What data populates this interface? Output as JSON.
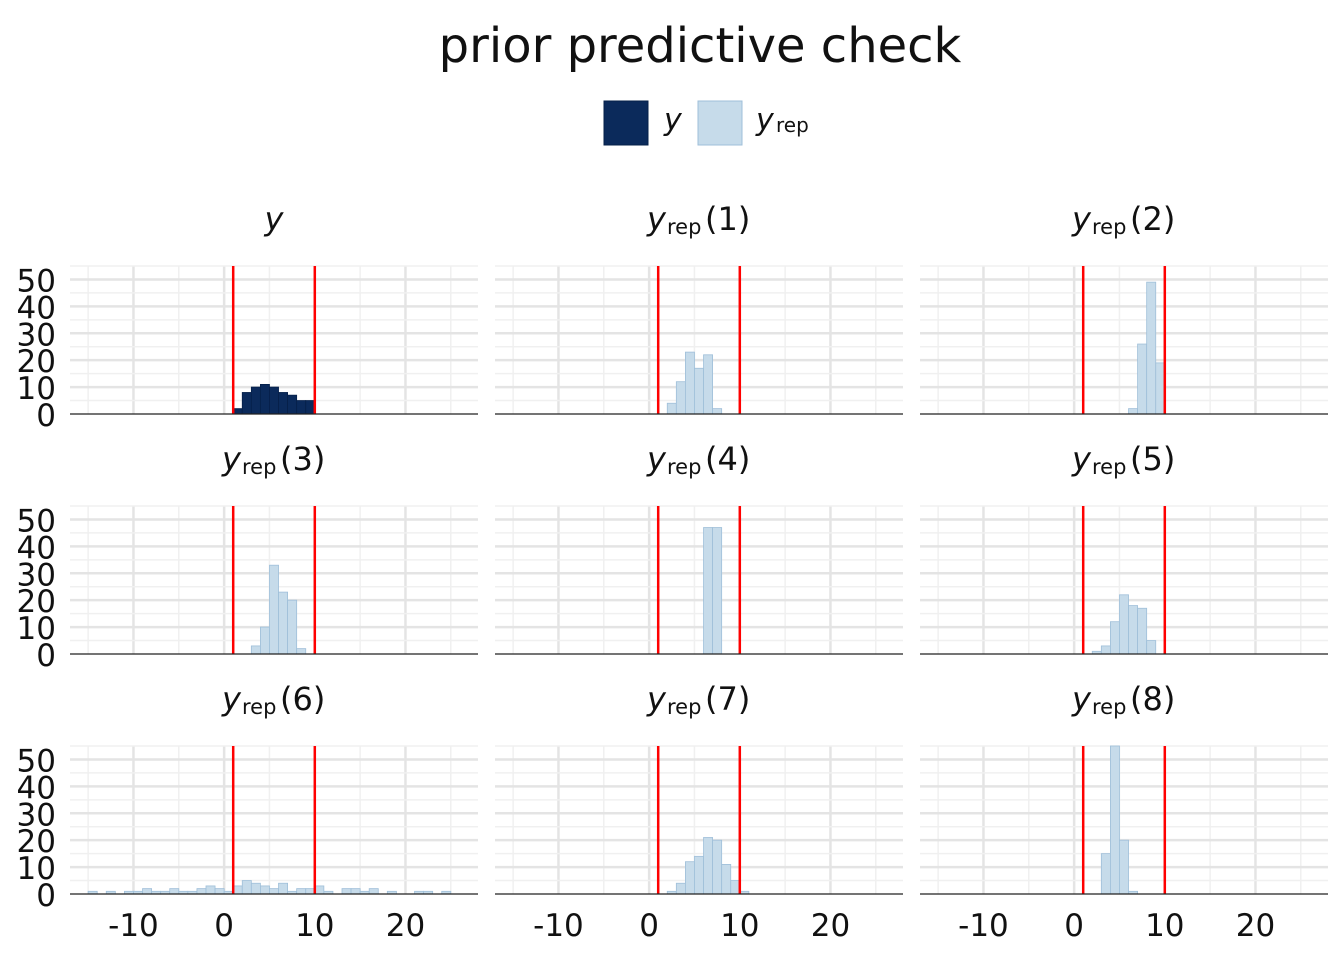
{
  "chart_data": {
    "type": "histogram-facets",
    "title": "prior predictive check",
    "legend": {
      "placement": "top-center",
      "items": [
        {
          "label_main": "y",
          "label_sub": "",
          "color": "#0b2a5b",
          "border": "#06204a"
        },
        {
          "label_main": "y",
          "label_sub": "rep",
          "color": "#c6dbea",
          "border": "#9fbfd9"
        }
      ]
    },
    "x_ticks": [
      -10,
      0,
      10,
      20
    ],
    "y_ticks": [
      0,
      10,
      20,
      30,
      40,
      50
    ],
    "xlim": [
      -17,
      28
    ],
    "ylim": [
      0,
      55
    ],
    "reference_lines": [
      1,
      10
    ],
    "reference_color": "#ff0000",
    "grid": true,
    "panels": [
      {
        "label_main": "y",
        "label_sub": "",
        "label_tail": "",
        "series": "y",
        "bins": [
          [
            1,
            2
          ],
          [
            2,
            8
          ],
          [
            3,
            10
          ],
          [
            4,
            11
          ],
          [
            5,
            10
          ],
          [
            6,
            8
          ],
          [
            7,
            7
          ],
          [
            8,
            5
          ],
          [
            9,
            5
          ]
        ]
      },
      {
        "label_main": "y",
        "label_sub": "rep",
        "label_tail": "(1)",
        "series": "rep",
        "bins": [
          [
            2,
            4
          ],
          [
            3,
            12
          ],
          [
            4,
            23
          ],
          [
            5,
            17
          ],
          [
            6,
            22
          ],
          [
            7,
            2
          ]
        ]
      },
      {
        "label_main": "y",
        "label_sub": "rep",
        "label_tail": "(2)",
        "series": "rep",
        "bins": [
          [
            6,
            2
          ],
          [
            7,
            26
          ],
          [
            8,
            49
          ],
          [
            9,
            19
          ]
        ]
      },
      {
        "label_main": "y",
        "label_sub": "rep",
        "label_tail": "(3)",
        "series": "rep",
        "bins": [
          [
            3,
            3
          ],
          [
            4,
            10
          ],
          [
            5,
            33
          ],
          [
            6,
            23
          ],
          [
            7,
            20
          ],
          [
            8,
            2
          ]
        ]
      },
      {
        "label_main": "y",
        "label_sub": "rep",
        "label_tail": "(4)",
        "series": "rep",
        "bins": [
          [
            6,
            47
          ],
          [
            7,
            47
          ]
        ]
      },
      {
        "label_main": "y",
        "label_sub": "rep",
        "label_tail": "(5)",
        "series": "rep",
        "bins": [
          [
            2,
            1
          ],
          [
            3,
            3
          ],
          [
            4,
            12
          ],
          [
            5,
            22
          ],
          [
            6,
            18
          ],
          [
            7,
            17
          ],
          [
            8,
            5
          ]
        ]
      },
      {
        "label_main": "y",
        "label_sub": "rep",
        "label_tail": "(6)",
        "series": "rep",
        "bins": [
          [
            -15,
            1
          ],
          [
            -13,
            1
          ],
          [
            -11,
            1
          ],
          [
            -10,
            1
          ],
          [
            -9,
            2
          ],
          [
            -8,
            1
          ],
          [
            -7,
            1
          ],
          [
            -6,
            2
          ],
          [
            -5,
            1
          ],
          [
            -4,
            1
          ],
          [
            -3,
            2
          ],
          [
            -2,
            3
          ],
          [
            -1,
            2
          ],
          [
            0,
            1
          ],
          [
            1,
            3
          ],
          [
            2,
            5
          ],
          [
            3,
            4
          ],
          [
            4,
            3
          ],
          [
            5,
            2
          ],
          [
            6,
            4
          ],
          [
            7,
            1
          ],
          [
            8,
            2
          ],
          [
            9,
            2
          ],
          [
            10,
            3
          ],
          [
            11,
            1
          ],
          [
            13,
            2
          ],
          [
            14,
            2
          ],
          [
            15,
            1
          ],
          [
            16,
            2
          ],
          [
            18,
            1
          ],
          [
            21,
            1
          ],
          [
            22,
            1
          ],
          [
            24,
            1
          ]
        ]
      },
      {
        "label_main": "y",
        "label_sub": "rep",
        "label_tail": "(7)",
        "series": "rep",
        "bins": [
          [
            2,
            1
          ],
          [
            3,
            4
          ],
          [
            4,
            12
          ],
          [
            5,
            14
          ],
          [
            6,
            21
          ],
          [
            7,
            20
          ],
          [
            8,
            11
          ],
          [
            9,
            5
          ],
          [
            10,
            1
          ]
        ]
      },
      {
        "label_main": "y",
        "label_sub": "rep",
        "label_tail": "(8)",
        "series": "rep",
        "bins": [
          [
            3,
            15
          ],
          [
            4,
            60
          ],
          [
            5,
            20
          ],
          [
            6,
            1
          ]
        ]
      }
    ]
  }
}
